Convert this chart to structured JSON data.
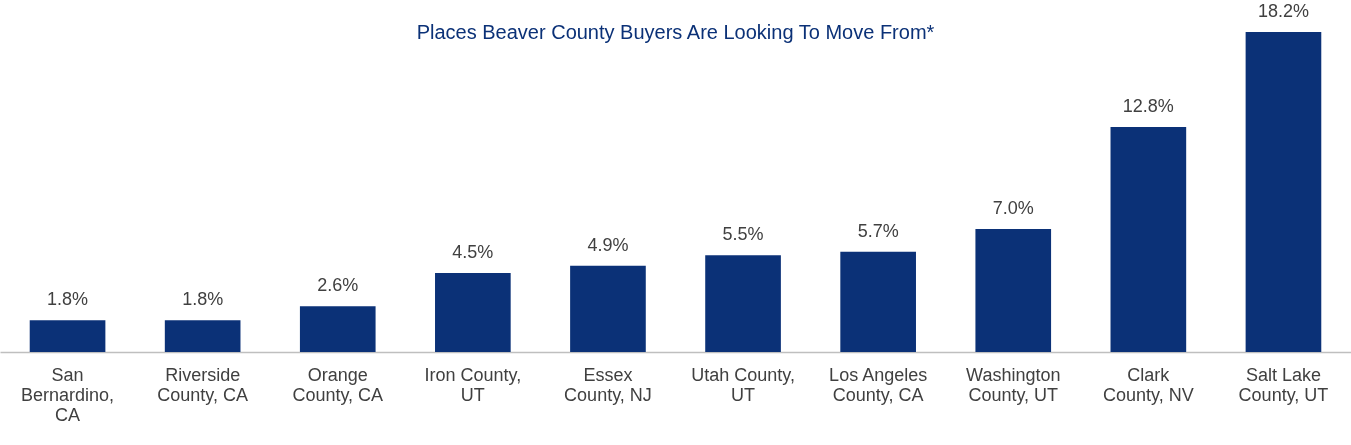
{
  "chart_data": {
    "type": "bar",
    "title": "Places Beaver County Buyers Are Looking To Move From*",
    "categories": [
      "San Bernardino, CA",
      "Riverside County, CA",
      "Orange County, CA",
      "Iron County, UT",
      "Essex County, NJ",
      "Utah County, UT",
      "Los Angeles County, CA",
      "Washington County, UT",
      "Clark County, NV",
      "Salt Lake County, UT"
    ],
    "values": [
      1.8,
      1.8,
      2.6,
      4.5,
      4.9,
      5.5,
      5.7,
      7.0,
      12.8,
      18.2
    ],
    "value_labels": [
      "1.8%",
      "1.8%",
      "2.6%",
      "4.5%",
      "4.9%",
      "5.5%",
      "5.7%",
      "7.0%",
      "12.8%",
      "18.2%"
    ],
    "color": "#0b3177",
    "grid": false
  }
}
